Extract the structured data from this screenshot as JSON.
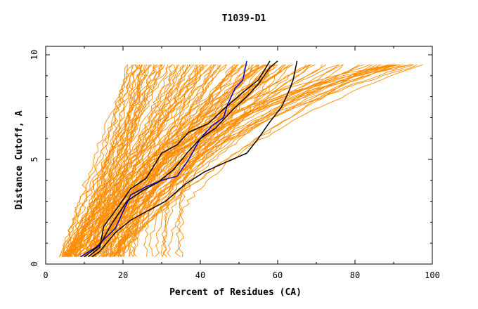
{
  "chart_data": {
    "type": "line",
    "title": "T1039-D1",
    "xlabel": "Percent of Residues (CA)",
    "ylabel": "Distance Cutoff, A",
    "xlim": [
      0,
      100
    ],
    "ylim": [
      0,
      10
    ],
    "x_ticks": [
      0,
      20,
      40,
      60,
      80,
      100
    ],
    "y_ticks": [
      0,
      5,
      10
    ],
    "grid": false,
    "legend": "none",
    "colors": {
      "background_models": "#ff8c00",
      "highlight_black": "#000000",
      "highlight_blue": "#0000cc"
    },
    "series": [
      {
        "color": "#0000cc",
        "points": [
          [
            9,
            0.35
          ],
          [
            13,
            0.8
          ],
          [
            18,
            1.7
          ],
          [
            22,
            3.3
          ],
          [
            26,
            3.7
          ],
          [
            30,
            4.0
          ],
          [
            34,
            4.2
          ],
          [
            37,
            5.0
          ],
          [
            40,
            6.0
          ],
          [
            43,
            6.6
          ],
          [
            46,
            7.0
          ],
          [
            47,
            7.6
          ],
          [
            49,
            8.4
          ],
          [
            51,
            8.8
          ],
          [
            52,
            9.7
          ]
        ]
      },
      {
        "color": "#000000",
        "points": [
          [
            10,
            0.35
          ],
          [
            14,
            0.9
          ],
          [
            17,
            1.9
          ],
          [
            21,
            3.0
          ],
          [
            25,
            3.5
          ],
          [
            29,
            3.9
          ],
          [
            33,
            4.5
          ],
          [
            37,
            5.4
          ],
          [
            40,
            6.0
          ],
          [
            44,
            6.5
          ],
          [
            48,
            7.3
          ],
          [
            52,
            8.0
          ],
          [
            55,
            8.6
          ],
          [
            58,
            9.4
          ],
          [
            60,
            9.7
          ]
        ]
      },
      {
        "color": "#000000",
        "points": [
          [
            11,
            0.35
          ],
          [
            14,
            0.8
          ],
          [
            15,
            1.8
          ],
          [
            19,
            2.8
          ],
          [
            22,
            3.6
          ],
          [
            26,
            4.1
          ],
          [
            30,
            5.3
          ],
          [
            34,
            5.7
          ],
          [
            37,
            6.3
          ],
          [
            42,
            6.7
          ],
          [
            46,
            7.4
          ],
          [
            51,
            8.2
          ],
          [
            55,
            8.8
          ],
          [
            58,
            9.7
          ]
        ]
      },
      {
        "color": "#000000",
        "points": [
          [
            12,
            0.35
          ],
          [
            14,
            0.6
          ],
          [
            18,
            1.5
          ],
          [
            22,
            2.1
          ],
          [
            27,
            2.6
          ],
          [
            31,
            3.0
          ],
          [
            36,
            3.8
          ],
          [
            41,
            4.4
          ],
          [
            47,
            4.9
          ],
          [
            52,
            5.3
          ],
          [
            55,
            6.0
          ],
          [
            58,
            6.8
          ],
          [
            61,
            7.5
          ],
          [
            63,
            8.3
          ],
          [
            64,
            8.8
          ],
          [
            65,
            9.7
          ]
        ]
      }
    ]
  }
}
